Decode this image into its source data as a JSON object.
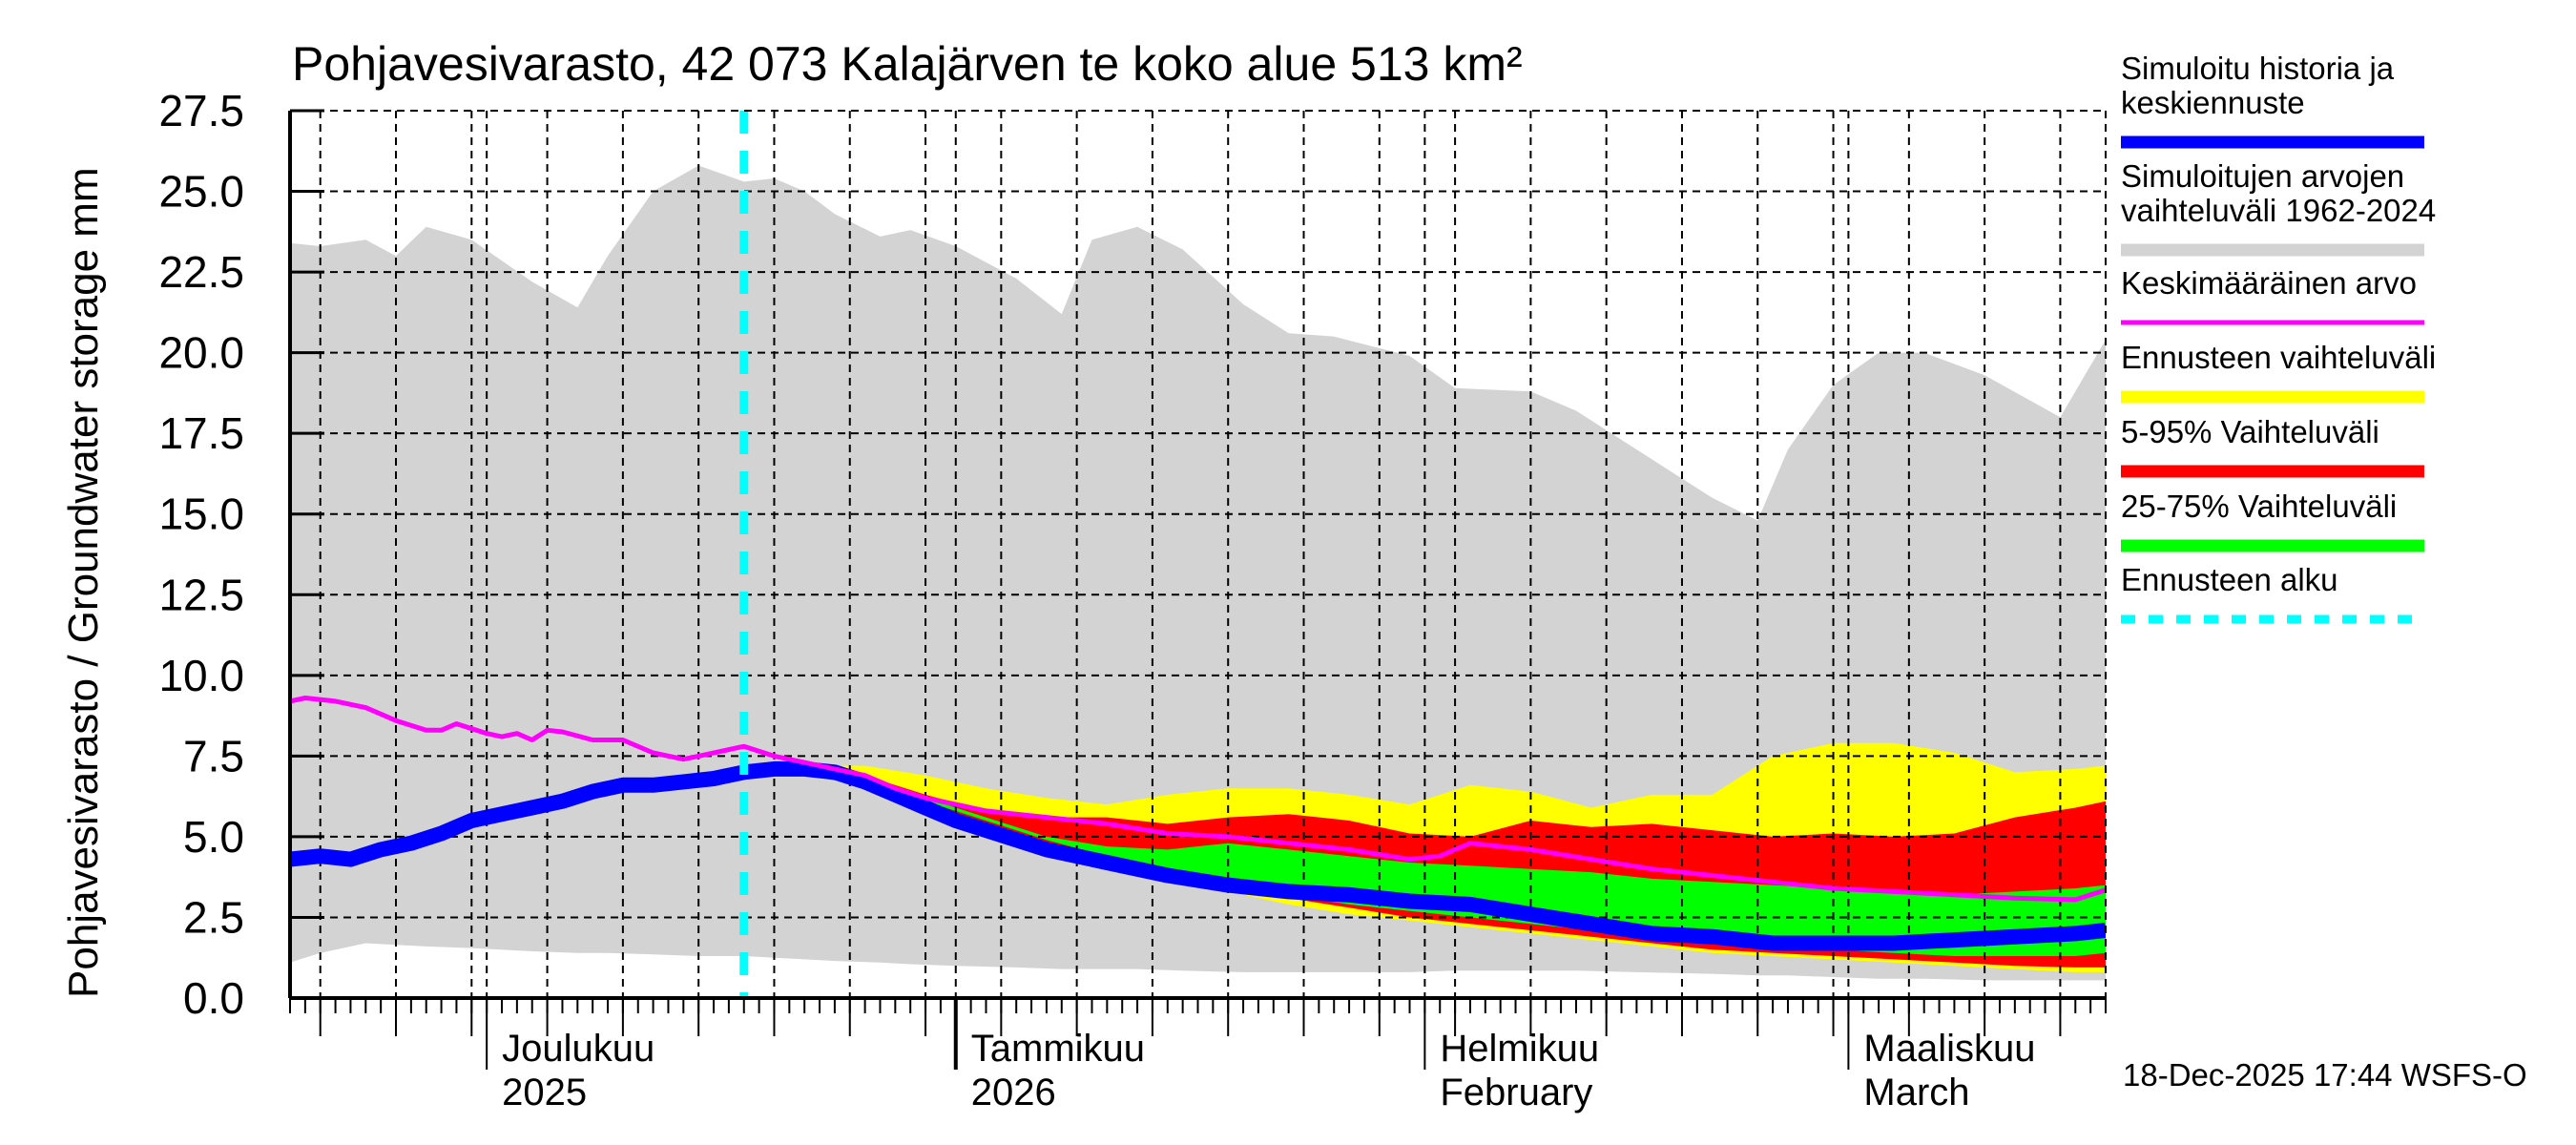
{
  "chart_data": {
    "type": "area",
    "title": "Pohjavesivarasto, 42 073 Kalajärven te koko alue 513 km²",
    "ylabel": "Pohjavesivarasto / Groundwater storage   mm",
    "xlabel": "",
    "ylim": [
      0,
      27.5
    ],
    "yticks": [
      "0.0",
      "2.5",
      "5.0",
      "7.5",
      "10.0",
      "12.5",
      "15.0",
      "17.5",
      "20.0",
      "22.5",
      "25.0",
      "27.5"
    ],
    "x_start_date": "2025-11-18",
    "x_end_date": "2026-03-18",
    "x_unit": "days since 2025-11-18",
    "xlim": [
      0,
      120
    ],
    "month_ticks": [
      {
        "day": 13,
        "label1": "Joulukuu",
        "label2": "2025"
      },
      {
        "day": 44,
        "label1": "Tammikuu",
        "label2": "2026"
      },
      {
        "day": 75,
        "label1": "Helmikuu",
        "label2": "February"
      },
      {
        "day": 103,
        "label1": "Maaliskuu",
        "label2": "March"
      }
    ],
    "forecast_start_day": 30,
    "grid": true,
    "legend_position": "right",
    "series": [
      {
        "name": "Simuloitujen arvojen vaihteluväli 1962-2024",
        "kind": "band",
        "color": "#d3d3d3",
        "x": [
          0,
          2,
          5,
          7,
          9,
          12,
          16,
          19,
          21,
          24,
          27,
          30,
          32,
          34,
          36,
          39,
          41,
          44,
          48,
          51,
          53,
          56,
          59,
          63,
          66,
          69,
          74,
          77,
          82,
          85,
          89,
          94,
          97,
          99,
          102,
          105,
          108,
          112,
          117,
          120
        ],
        "upper": [
          23.4,
          23.3,
          23.5,
          23.0,
          23.9,
          23.5,
          22.2,
          21.4,
          23.0,
          25.0,
          25.8,
          25.3,
          25.4,
          25.0,
          24.3,
          23.6,
          23.8,
          23.3,
          22.3,
          21.2,
          23.5,
          23.9,
          23.2,
          21.5,
          20.6,
          20.5,
          19.9,
          18.9,
          18.8,
          18.2,
          17.0,
          15.5,
          14.8,
          17.0,
          19.0,
          20.0,
          20.0,
          19.3,
          18.0,
          20.4
        ],
        "lower": [
          1.1,
          1.4,
          1.7,
          1.65,
          1.6,
          1.55,
          1.45,
          1.4,
          1.4,
          1.35,
          1.3,
          1.3,
          1.25,
          1.2,
          1.15,
          1.1,
          1.05,
          1.0,
          0.95,
          0.9,
          0.9,
          0.9,
          0.85,
          0.8,
          0.8,
          0.8,
          0.8,
          0.85,
          0.85,
          0.85,
          0.8,
          0.75,
          0.7,
          0.7,
          0.65,
          0.6,
          0.6,
          0.55,
          0.55,
          0.55
        ]
      },
      {
        "name": "Ennusteen vaihteluväli",
        "kind": "band",
        "color": "#ffff00",
        "x": [
          30,
          34,
          38,
          42,
          46,
          50,
          54,
          58,
          62,
          66,
          70,
          74,
          78,
          82,
          86,
          90,
          94,
          98,
          102,
          106,
          110,
          114,
          118,
          120
        ],
        "upper": [
          7.0,
          7.2,
          7.2,
          6.9,
          6.5,
          6.2,
          6.0,
          6.3,
          6.5,
          6.5,
          6.3,
          6.0,
          6.6,
          6.4,
          5.9,
          6.3,
          6.3,
          7.5,
          7.9,
          7.9,
          7.6,
          7.0,
          7.1,
          7.2
        ],
        "lower": [
          7.0,
          6.9,
          6.6,
          6.0,
          5.3,
          4.7,
          4.1,
          3.7,
          3.3,
          2.9,
          2.6,
          2.4,
          2.2,
          2.0,
          1.8,
          1.6,
          1.4,
          1.3,
          1.2,
          1.1,
          1.0,
          0.9,
          0.8,
          0.8
        ]
      },
      {
        "name": "5-95% Vaihteluväli",
        "kind": "band",
        "color": "#ff0000",
        "x": [
          30,
          34,
          38,
          42,
          46,
          50,
          54,
          58,
          62,
          66,
          70,
          74,
          78,
          82,
          86,
          90,
          94,
          98,
          102,
          106,
          110,
          114,
          118,
          120
        ],
        "upper": [
          7.0,
          7.1,
          6.9,
          6.3,
          5.8,
          5.6,
          5.6,
          5.4,
          5.6,
          5.7,
          5.5,
          5.1,
          5.0,
          5.5,
          5.3,
          5.4,
          5.2,
          5.0,
          5.1,
          5.0,
          5.1,
          5.6,
          5.9,
          6.1
        ],
        "lower": [
          7.0,
          6.9,
          6.6,
          6.1,
          5.4,
          4.8,
          4.2,
          3.8,
          3.4,
          3.1,
          2.8,
          2.5,
          2.3,
          2.1,
          1.9,
          1.7,
          1.5,
          1.4,
          1.3,
          1.2,
          1.1,
          1.0,
          0.95,
          0.95
        ]
      },
      {
        "name": "25-75% Vaihteluväli",
        "kind": "band",
        "color": "#00ff00",
        "x": [
          30,
          34,
          38,
          42,
          46,
          50,
          54,
          58,
          62,
          66,
          70,
          74,
          78,
          82,
          86,
          90,
          94,
          98,
          102,
          106,
          110,
          114,
          118,
          120
        ],
        "upper": [
          7.0,
          7.0,
          6.8,
          6.2,
          5.6,
          5.0,
          4.7,
          4.6,
          4.8,
          4.6,
          4.4,
          4.2,
          4.1,
          4.0,
          3.9,
          3.7,
          3.6,
          3.5,
          3.4,
          3.3,
          3.2,
          3.3,
          3.4,
          3.5
        ],
        "lower": [
          7.0,
          6.9,
          6.6,
          6.1,
          5.5,
          4.9,
          4.4,
          3.9,
          3.5,
          3.2,
          2.9,
          2.7,
          2.5,
          2.3,
          2.1,
          1.9,
          1.8,
          1.6,
          1.5,
          1.4,
          1.3,
          1.3,
          1.3,
          1.4
        ]
      },
      {
        "name": "Simuloitu historia ja keskiennuste",
        "kind": "line",
        "color": "#0000ff",
        "x": [
          0,
          2,
          4,
          6,
          8,
          10,
          12,
          14,
          16,
          18,
          20,
          22,
          24,
          26,
          28,
          30,
          32,
          34,
          36,
          38,
          40,
          42,
          44,
          46,
          50,
          54,
          58,
          62,
          66,
          70,
          74,
          78,
          82,
          86,
          90,
          94,
          98,
          102,
          106,
          110,
          114,
          118,
          120
        ],
        "values": [
          4.3,
          4.4,
          4.3,
          4.6,
          4.8,
          5.1,
          5.5,
          5.7,
          5.9,
          6.1,
          6.4,
          6.6,
          6.6,
          6.7,
          6.8,
          7.0,
          7.1,
          7.1,
          7.0,
          6.7,
          6.3,
          5.9,
          5.5,
          5.2,
          4.6,
          4.2,
          3.8,
          3.5,
          3.3,
          3.2,
          3.0,
          2.9,
          2.6,
          2.3,
          2.0,
          1.9,
          1.7,
          1.7,
          1.7,
          1.8,
          1.9,
          2.0,
          2.1
        ]
      },
      {
        "name": "Keskimääräinen arvo",
        "kind": "line",
        "color": "#ff00ff",
        "x": [
          0,
          1,
          3,
          5,
          7,
          9,
          10,
          11,
          13,
          14,
          15,
          16,
          17,
          18,
          20,
          22,
          24,
          26,
          27,
          29,
          30,
          32,
          34,
          36,
          38,
          40,
          42,
          44,
          46,
          50,
          54,
          58,
          62,
          66,
          70,
          74,
          76,
          78,
          82,
          86,
          90,
          94,
          98,
          102,
          106,
          110,
          114,
          118,
          120
        ],
        "values": [
          9.2,
          9.3,
          9.2,
          9.0,
          8.6,
          8.3,
          8.3,
          8.5,
          8.2,
          8.1,
          8.2,
          8.0,
          8.3,
          8.25,
          8.0,
          8.0,
          7.6,
          7.4,
          7.5,
          7.7,
          7.8,
          7.5,
          7.3,
          7.1,
          6.9,
          6.5,
          6.2,
          6.0,
          5.8,
          5.6,
          5.4,
          5.1,
          5.0,
          4.8,
          4.6,
          4.3,
          4.4,
          4.8,
          4.6,
          4.3,
          4.0,
          3.8,
          3.6,
          3.4,
          3.3,
          3.2,
          3.1,
          3.05,
          3.35
        ]
      }
    ],
    "forecast_line": {
      "name": "Ennusteen alku",
      "color": "#00ffff",
      "style": "dashed"
    }
  },
  "legend": [
    {
      "label": "Simuloitu historia ja\nkeskiennuste",
      "color": "#0000ff",
      "style": "solid"
    },
    {
      "label": "Simuloitujen arvojen\nvaihteluväli 1962-2024",
      "color": "#d3d3d3",
      "style": "solid"
    },
    {
      "label": "Keskimääräinen arvo",
      "color": "#ff00ff",
      "style": "thin"
    },
    {
      "label": "Ennusteen vaihteluväli",
      "color": "#ffff00",
      "style": "solid"
    },
    {
      "label": "5-95% Vaihteluväli",
      "color": "#ff0000",
      "style": "solid"
    },
    {
      "label": "25-75% Vaihteluväli",
      "color": "#00ff00",
      "style": "solid"
    },
    {
      "label": "Ennusteen alku",
      "color": "#00ffff",
      "style": "dashed"
    }
  ],
  "footer": {
    "timestamp": "18-Dec-2025 17:44 WSFS-O"
  }
}
